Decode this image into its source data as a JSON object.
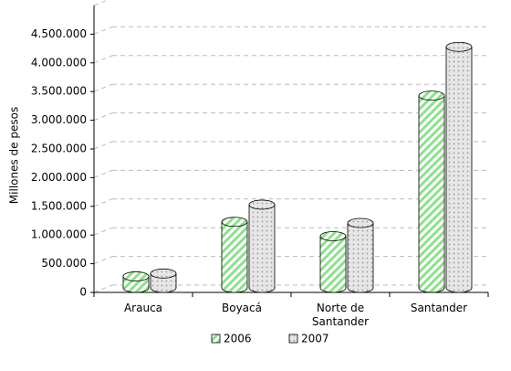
{
  "chart_data": {
    "type": "bar3d",
    "y_axis_label": "Millones de pesos",
    "categories": [
      "Arauca",
      "Boyacá",
      "Norte de Santander",
      "Santander"
    ],
    "series": [
      {
        "name": "2006",
        "color": "#8ee08e",
        "values": [
          200000,
          1150000,
          900000,
          3350000
        ]
      },
      {
        "name": "2007",
        "color": "#d9d9d9",
        "values": [
          250000,
          1450000,
          1130000,
          4200000
        ]
      }
    ],
    "ylim": [
      0,
      5000000
    ],
    "yticks": [
      0,
      {
        "value": 500000,
        "label": "500.000"
      },
      {
        "value": 1000000,
        "label": "1.000.000"
      },
      {
        "value": 1500000,
        "label": "1.500.000"
      },
      {
        "value": 2000000,
        "label": "2.000.000"
      },
      {
        "value": 2500000,
        "label": "2.500.000"
      },
      {
        "value": 3000000,
        "label": "3.000.000"
      },
      {
        "value": 3500000,
        "label": "3.500.000"
      },
      {
        "value": 4000000,
        "label": "4.000.000"
      },
      {
        "value": 4500000,
        "label": "4.500.000"
      }
    ],
    "grid": true,
    "legend": "bottom"
  }
}
